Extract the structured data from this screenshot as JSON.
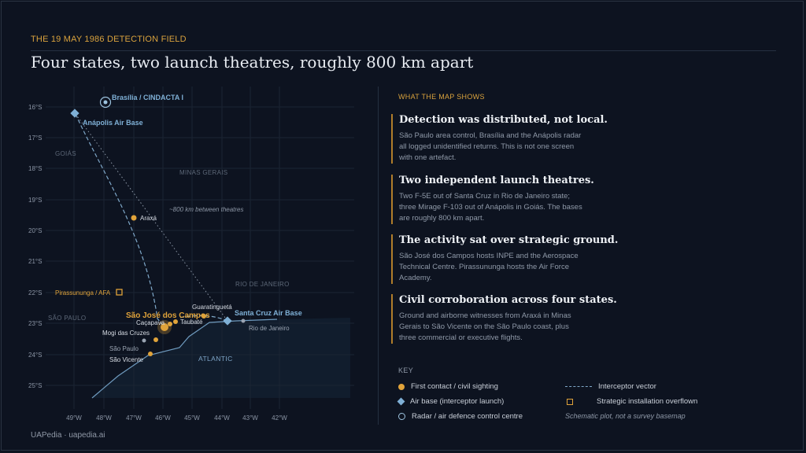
{
  "header": {
    "kicker": "THE 19 MAY 1986 DETECTION FIELD",
    "title": "Four states, two launch theatres, roughly 800 km apart"
  },
  "map": {
    "x_ticks": [
      "49°W",
      "48°W",
      "47°W",
      "46°W",
      "45°W",
      "44°W",
      "43°W",
      "42°W"
    ],
    "y_ticks": [
      "16°S",
      "17°S",
      "18°S",
      "19°S",
      "20°S",
      "21°S",
      "22°S",
      "23°S",
      "24°S",
      "25°S"
    ],
    "regions": {
      "goias": "GOIÁS",
      "minas": "MINAS GERAIS",
      "rio": "RIO DE JANEIRO",
      "sao_paulo": "SÃO PAULO",
      "atlantic": "ATLANTIC"
    },
    "places": {
      "brasilia": "Brasília / CINDACTA I",
      "anapolis": "Anápolis Air Base",
      "araxa": "Araxá",
      "pirassununga": "Pirassununga / AFA",
      "guaratingueta": "Guaratinguetá",
      "santa_cruz": "Santa Cruz Air Base",
      "sjc": "São José dos Campos",
      "cacapava": "Caçapava",
      "taubate": "Taubaté",
      "mogi": "Mogi das Cruzes",
      "sao_paulo": "São Paulo",
      "sao_vicente": "São Vicente",
      "rio": "Rio de Janeiro"
    },
    "annotation": "~800 km between theatres",
    "colors": {
      "contact": "#e0a33a",
      "base": "#7fb0d6",
      "ocean": "#111d2d",
      "coast": "#6f9bbf"
    }
  },
  "panel": {
    "heading": "WHAT THE MAP SHOWS",
    "points": [
      {
        "title": "Detection was distributed, not local.",
        "body": "São Paulo area control, Brasília and the Anápolis radar all logged unidentified returns. This is not one screen with one artefact."
      },
      {
        "title": "Two independent launch theatres.",
        "body": "Two F-5E out of Santa Cruz in Rio de Janeiro state; three Mirage F-103 out of Anápolis in Goiás. The bases are roughly 800 km apart."
      },
      {
        "title": "The activity sat over strategic ground.",
        "body": "São José dos Campos hosts INPE and the Aerospace Technical Centre. Pirassununga hosts the Air Force Academy."
      },
      {
        "title": "Civil corroboration across four states.",
        "body": "Ground and airborne witnesses from Araxá in Minas Gerais to São Vicente on the São Paulo coast, plus three commercial or executive flights."
      }
    ]
  },
  "key": {
    "heading": "KEY",
    "contact": "First contact / civil sighting",
    "base": "Air base (interceptor launch)",
    "radar": "Radar / air defence control centre",
    "vector": "Interceptor vector",
    "installation": "Strategic installation overflown",
    "note": "Schematic plot, not a survey basemap"
  },
  "footer": {
    "credit": "UAPedia · uapedia.ai"
  }
}
